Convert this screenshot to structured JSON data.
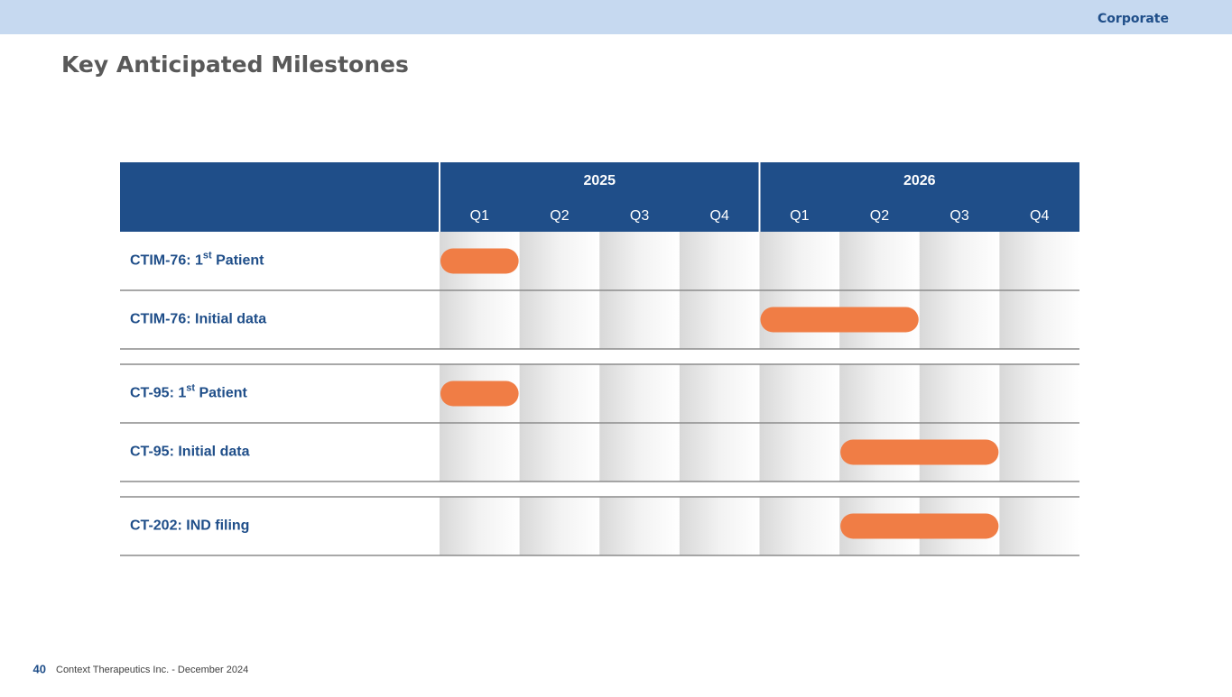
{
  "header": {
    "section": "Corporate",
    "title": "Key Anticipated Milestones"
  },
  "table": {
    "years": [
      "2025",
      "2026"
    ],
    "quarters": [
      "Q1",
      "Q2",
      "Q3",
      "Q4",
      "Q1",
      "Q2",
      "Q3",
      "Q4"
    ],
    "groups": [
      [
        {
          "label": [
            "CTIM-76: 1",
            "st",
            " Patient"
          ],
          "start": 0,
          "end": 1
        },
        {
          "label": [
            "CTIM-76: Initial data"
          ],
          "start": 4,
          "end": 6
        }
      ],
      [
        {
          "label": [
            "CT-95: 1",
            "st",
            " Patient"
          ],
          "start": 0,
          "end": 1
        },
        {
          "label": [
            "CT-95: Initial data"
          ],
          "start": 5,
          "end": 7
        }
      ],
      [
        {
          "label": [
            "CT-202: IND filing"
          ],
          "start": 5,
          "end": 7
        }
      ]
    ]
  },
  "footer": {
    "page": "40",
    "text": "Context Therapeutics Inc. -  December 2024"
  }
}
